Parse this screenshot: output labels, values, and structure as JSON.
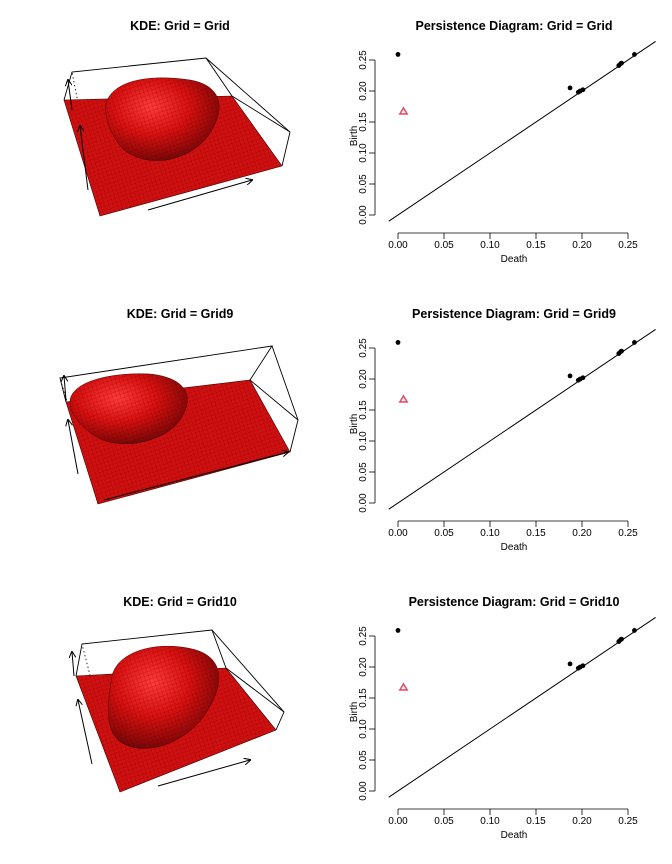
{
  "chart_data": [
    {
      "type": "surface3d",
      "title": "KDE: Grid = Grid",
      "surface_color": "#d01010"
    },
    {
      "type": "scatter",
      "title": "Persistence Diagram: Grid = Grid",
      "xlabel": "Death",
      "ylabel": "Birth",
      "xlim": [
        0,
        0.26
      ],
      "ylim": [
        0,
        0.26
      ],
      "x_ticks": [
        "0.00",
        "0.05",
        "0.10",
        "0.15",
        "0.20",
        "0.25"
      ],
      "y_ticks": [
        "0.00",
        "0.05",
        "0.10",
        "0.15",
        "0.20",
        "0.25"
      ],
      "diagonal": true,
      "series": [
        {
          "marker": "dot",
          "color": "#000000",
          "points": [
            [
              0.0,
              0.259
            ],
            [
              0.187,
              0.205
            ],
            [
              0.196,
              0.198
            ],
            [
              0.198,
              0.2
            ],
            [
              0.201,
              0.202
            ],
            [
              0.24,
              0.241
            ],
            [
              0.242,
              0.244
            ],
            [
              0.243,
              0.245
            ],
            [
              0.257,
              0.259
            ]
          ]
        },
        {
          "marker": "triangle",
          "color": "#df536b",
          "points": [
            [
              0.006,
              0.167
            ]
          ]
        }
      ]
    },
    {
      "type": "surface3d",
      "title": "KDE: Grid = Grid9",
      "surface_color": "#d01010"
    },
    {
      "type": "scatter",
      "title": "Persistence Diagram: Grid = Grid9",
      "xlabel": "Death",
      "ylabel": "Birth",
      "xlim": [
        0,
        0.26
      ],
      "ylim": [
        0,
        0.26
      ],
      "x_ticks": [
        "0.00",
        "0.05",
        "0.10",
        "0.15",
        "0.20",
        "0.25"
      ],
      "y_ticks": [
        "0.00",
        "0.05",
        "0.10",
        "0.15",
        "0.20",
        "0.25"
      ],
      "diagonal": true,
      "series": [
        {
          "marker": "dot",
          "color": "#000000",
          "points": [
            [
              0.0,
              0.259
            ],
            [
              0.187,
              0.205
            ],
            [
              0.196,
              0.198
            ],
            [
              0.198,
              0.2
            ],
            [
              0.201,
              0.202
            ],
            [
              0.24,
              0.241
            ],
            [
              0.242,
              0.244
            ],
            [
              0.243,
              0.245
            ],
            [
              0.257,
              0.259
            ]
          ]
        },
        {
          "marker": "triangle",
          "color": "#df536b",
          "points": [
            [
              0.006,
              0.167
            ]
          ]
        }
      ]
    },
    {
      "type": "surface3d",
      "title": "KDE: Grid = Grid10",
      "surface_color": "#d01010"
    },
    {
      "type": "scatter",
      "title": "Persistence Diagram: Grid = Grid10",
      "xlabel": "Death",
      "ylabel": "Birth",
      "xlim": [
        0,
        0.26
      ],
      "ylim": [
        0,
        0.26
      ],
      "x_ticks": [
        "0.00",
        "0.05",
        "0.10",
        "0.15",
        "0.20",
        "0.25"
      ],
      "y_ticks": [
        "0.00",
        "0.05",
        "0.10",
        "0.15",
        "0.20",
        "0.25"
      ],
      "diagonal": true,
      "series": [
        {
          "marker": "dot",
          "color": "#000000",
          "points": [
            [
              0.0,
              0.259
            ],
            [
              0.187,
              0.205
            ],
            [
              0.196,
              0.198
            ],
            [
              0.198,
              0.2
            ],
            [
              0.201,
              0.202
            ],
            [
              0.24,
              0.241
            ],
            [
              0.242,
              0.244
            ],
            [
              0.243,
              0.245
            ],
            [
              0.257,
              0.259
            ]
          ]
        },
        {
          "marker": "triangle",
          "color": "#df536b",
          "points": [
            [
              0.006,
              0.167
            ]
          ]
        }
      ]
    }
  ]
}
